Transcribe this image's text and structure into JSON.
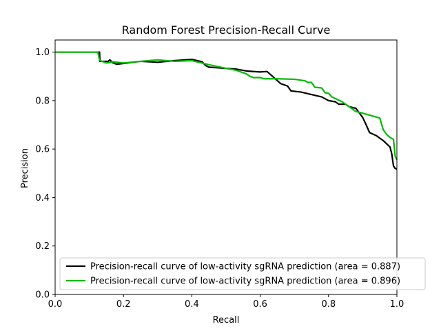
{
  "chart_data": {
    "type": "line",
    "title": "Random Forest Precision-Recall Curve",
    "xlabel": "Recall",
    "ylabel": "Precision",
    "xlim": [
      0.0,
      1.0
    ],
    "ylim": [
      0.0,
      1.05
    ],
    "xticks": [
      0.0,
      0.2,
      0.4,
      0.6,
      0.8,
      1.0
    ],
    "yticks": [
      0.0,
      0.2,
      0.4,
      0.6,
      0.8,
      1.0
    ],
    "grid": false,
    "legend_position": "lower-right",
    "series": [
      {
        "name": "Precision-recall curve of low-activity sgRNA prediction (area = 0.887)",
        "color": "#000000",
        "points": [
          [
            0.0,
            1.0
          ],
          [
            0.13,
            1.0
          ],
          [
            0.131,
            0.962
          ],
          [
            0.155,
            0.962
          ],
          [
            0.16,
            0.968
          ],
          [
            0.17,
            0.955
          ],
          [
            0.18,
            0.95
          ],
          [
            0.2,
            0.953
          ],
          [
            0.25,
            0.962
          ],
          [
            0.3,
            0.958
          ],
          [
            0.35,
            0.965
          ],
          [
            0.4,
            0.97
          ],
          [
            0.43,
            0.96
          ],
          [
            0.44,
            0.945
          ],
          [
            0.45,
            0.938
          ],
          [
            0.5,
            0.933
          ],
          [
            0.53,
            0.93
          ],
          [
            0.56,
            0.922
          ],
          [
            0.6,
            0.918
          ],
          [
            0.62,
            0.92
          ],
          [
            0.64,
            0.895
          ],
          [
            0.66,
            0.87
          ],
          [
            0.68,
            0.86
          ],
          [
            0.69,
            0.84
          ],
          [
            0.72,
            0.835
          ],
          [
            0.75,
            0.825
          ],
          [
            0.78,
            0.815
          ],
          [
            0.8,
            0.8
          ],
          [
            0.82,
            0.795
          ],
          [
            0.83,
            0.785
          ],
          [
            0.85,
            0.785
          ],
          [
            0.86,
            0.775
          ],
          [
            0.88,
            0.768
          ],
          [
            0.9,
            0.73
          ],
          [
            0.91,
            0.7
          ],
          [
            0.92,
            0.668
          ],
          [
            0.94,
            0.655
          ],
          [
            0.96,
            0.635
          ],
          [
            0.98,
            0.608
          ],
          [
            0.985,
            0.58
          ],
          [
            0.99,
            0.53
          ],
          [
            0.995,
            0.52
          ],
          [
            1.0,
            0.518
          ]
        ]
      },
      {
        "name": "Precision-recall curve of low-activity sgRNA prediction (area = 0.896)",
        "color": "#00bb00",
        "points": [
          [
            0.0,
            1.0
          ],
          [
            0.125,
            1.0
          ],
          [
            0.13,
            0.966
          ],
          [
            0.15,
            0.955
          ],
          [
            0.17,
            0.96
          ],
          [
            0.2,
            0.955
          ],
          [
            0.25,
            0.962
          ],
          [
            0.3,
            0.968
          ],
          [
            0.35,
            0.962
          ],
          [
            0.4,
            0.965
          ],
          [
            0.45,
            0.948
          ],
          [
            0.5,
            0.933
          ],
          [
            0.53,
            0.925
          ],
          [
            0.56,
            0.91
          ],
          [
            0.57,
            0.9
          ],
          [
            0.58,
            0.895
          ],
          [
            0.6,
            0.895
          ],
          [
            0.61,
            0.89
          ],
          [
            0.65,
            0.89
          ],
          [
            0.7,
            0.888
          ],
          [
            0.73,
            0.882
          ],
          [
            0.74,
            0.875
          ],
          [
            0.75,
            0.875
          ],
          [
            0.76,
            0.855
          ],
          [
            0.78,
            0.852
          ],
          [
            0.79,
            0.832
          ],
          [
            0.8,
            0.83
          ],
          [
            0.81,
            0.815
          ],
          [
            0.84,
            0.795
          ],
          [
            0.86,
            0.775
          ],
          [
            0.88,
            0.755
          ],
          [
            0.9,
            0.748
          ],
          [
            0.92,
            0.74
          ],
          [
            0.95,
            0.728
          ],
          [
            0.96,
            0.68
          ],
          [
            0.97,
            0.66
          ],
          [
            0.98,
            0.648
          ],
          [
            0.99,
            0.64
          ],
          [
            0.995,
            0.57
          ],
          [
            1.0,
            0.555
          ]
        ]
      }
    ]
  }
}
